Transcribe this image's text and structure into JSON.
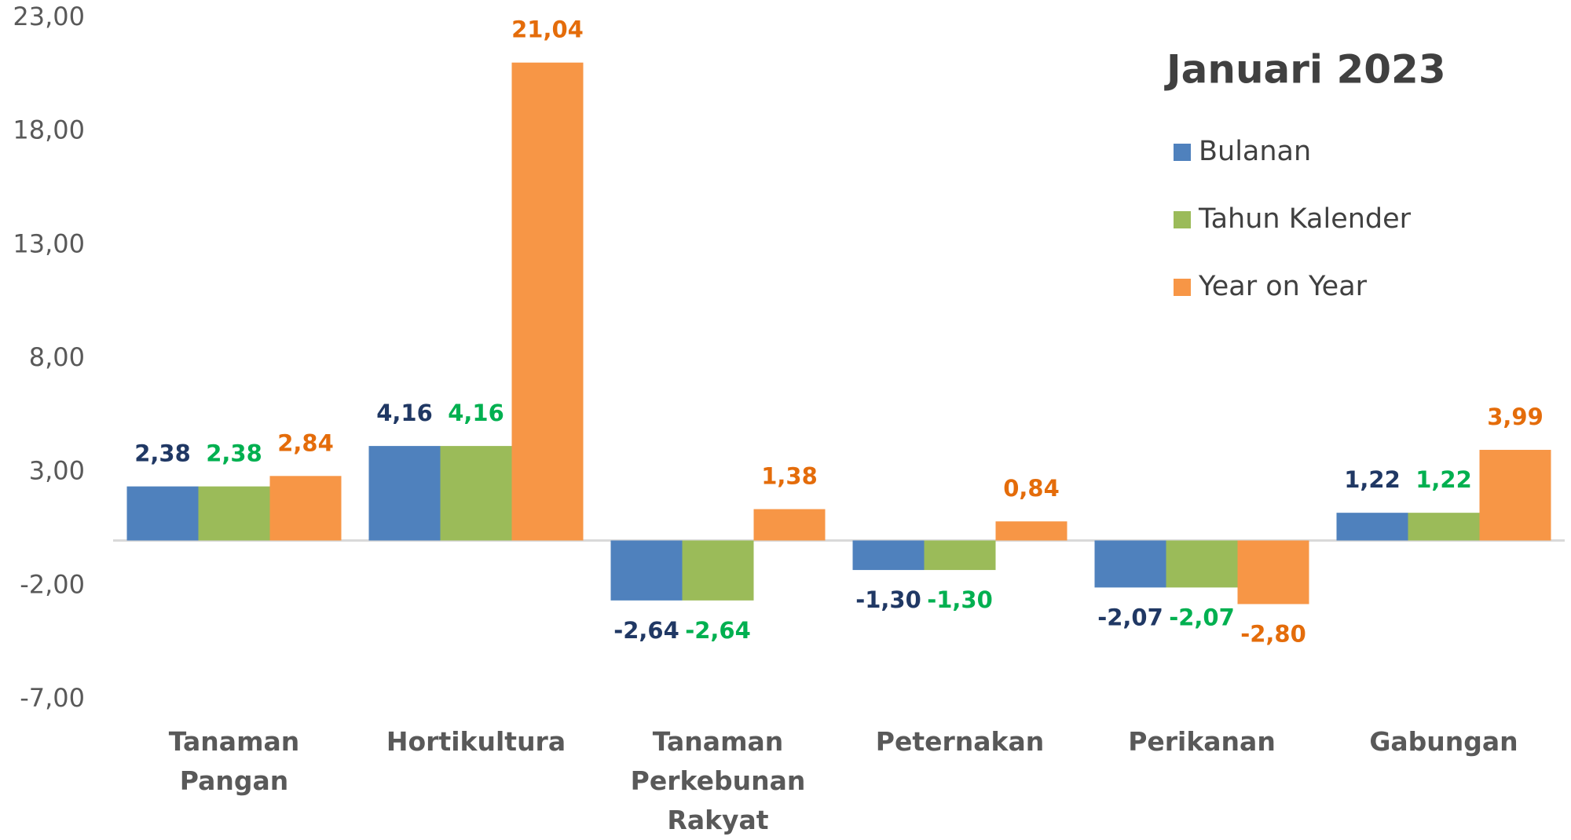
{
  "chart_data": {
    "type": "bar",
    "title": "Januari 2023",
    "categories": [
      "Tanaman Pangan",
      "Hortikultura",
      "Tanaman Perkebunan Rakyat",
      "Peternakan",
      "Perikanan",
      "Gabungan"
    ],
    "series": [
      {
        "name": "Bulanan",
        "color": "#4f81bd",
        "label_color": "#203864",
        "values": [
          2.38,
          4.16,
          -2.64,
          -1.3,
          -2.07,
          1.22
        ],
        "value_labels": [
          "2,38",
          "4,16",
          "-2,64",
          "-1,30",
          "-2,07",
          "1,22"
        ]
      },
      {
        "name": "Tahun Kalender",
        "color": "#9bbb59",
        "label_color": "#00b050",
        "values": [
          2.38,
          4.16,
          -2.64,
          -1.3,
          -2.07,
          1.22
        ],
        "value_labels": [
          "2,38",
          "4,16",
          "-2,64",
          "-1,30",
          "-2,07",
          "1,22"
        ]
      },
      {
        "name": "Year on Year",
        "color": "#f79646",
        "label_color": "#e46c0a",
        "values": [
          2.84,
          21.04,
          1.38,
          0.84,
          -2.8,
          3.99
        ],
        "value_labels": [
          "2,84",
          "21,04",
          "1,38",
          "0,84",
          "-2,80",
          "3,99"
        ]
      }
    ],
    "ylim": [
      -7,
      23
    ],
    "yticks": [
      {
        "value": -7,
        "label": "-7,00"
      },
      {
        "value": -2,
        "label": "-2,00"
      },
      {
        "value": 3,
        "label": "3,00"
      },
      {
        "value": 8,
        "label": "8,00"
      },
      {
        "value": 13,
        "label": "13,00"
      },
      {
        "value": 18,
        "label": "18,00"
      },
      {
        "value": 23,
        "label": "23,00"
      }
    ],
    "grid": false
  }
}
